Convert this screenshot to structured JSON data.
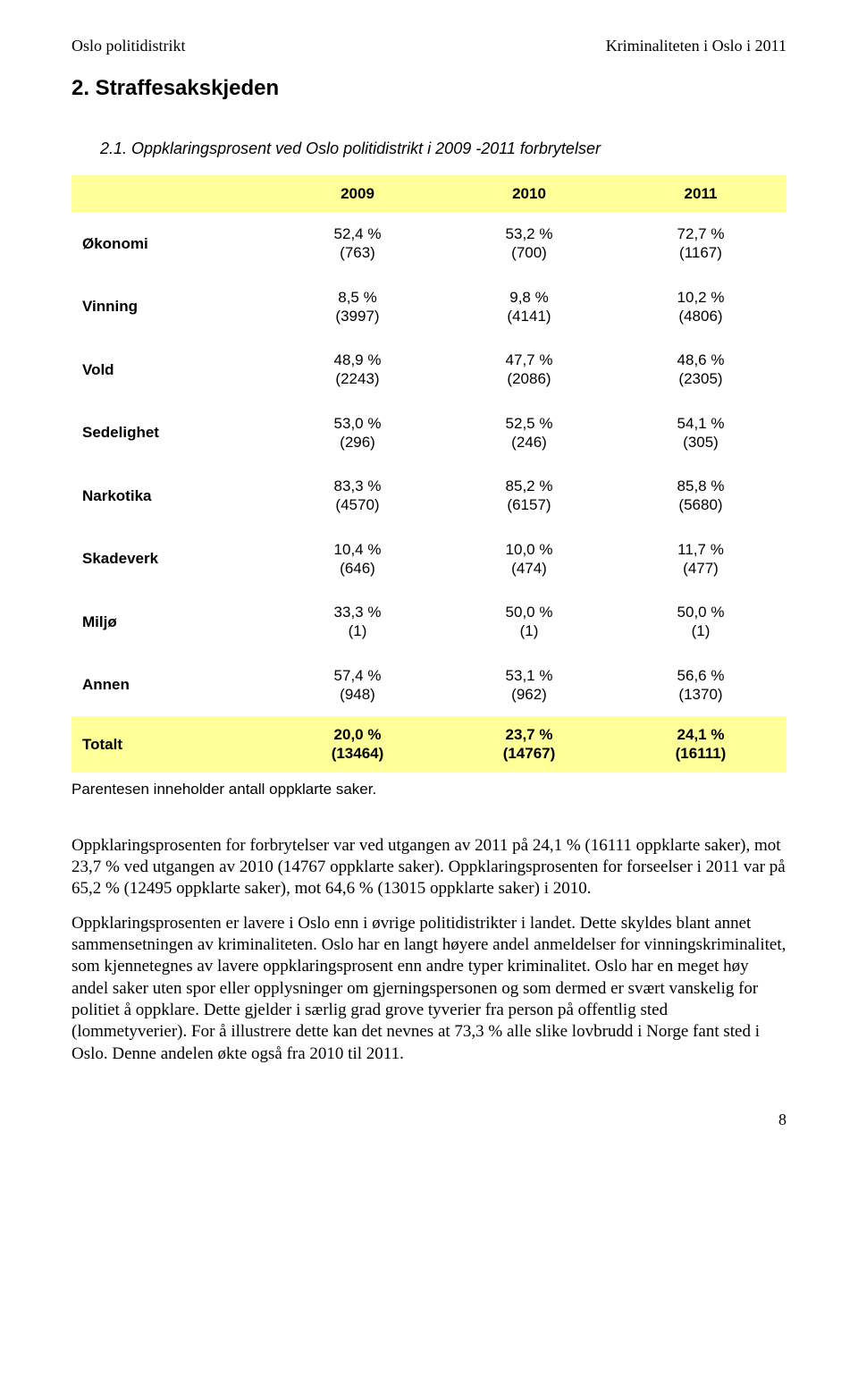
{
  "header": {
    "left": "Oslo politidistrikt",
    "right": "Kriminaliteten i Oslo i 2011"
  },
  "section_title": "2. Straffesakskjeden",
  "table_title": "2.1. Oppklaringsprosent ved Oslo politidistrikt i 2009 -2011 forbrytelser",
  "table": {
    "header_bg": "#ffff99",
    "total_bg": "#ffff99",
    "columns": [
      "",
      "2009",
      "2010",
      "2011"
    ],
    "rows": [
      {
        "label": "Økonomi",
        "y2009": {
          "pct": "52,4 %",
          "n": "(763)"
        },
        "y2010": {
          "pct": "53,2 %",
          "n": "(700)"
        },
        "y2011": {
          "pct": "72,7 %",
          "n": "(1167)"
        }
      },
      {
        "label": "Vinning",
        "y2009": {
          "pct": "8,5 %",
          "n": "(3997)"
        },
        "y2010": {
          "pct": "9,8 %",
          "n": "(4141)"
        },
        "y2011": {
          "pct": "10,2 %",
          "n": "(4806)"
        }
      },
      {
        "label": "Vold",
        "y2009": {
          "pct": "48,9 %",
          "n": "(2243)"
        },
        "y2010": {
          "pct": "47,7 %",
          "n": "(2086)"
        },
        "y2011": {
          "pct": "48,6 %",
          "n": "(2305)"
        }
      },
      {
        "label": "Sedelighet",
        "y2009": {
          "pct": "53,0 %",
          "n": "(296)"
        },
        "y2010": {
          "pct": "52,5 %",
          "n": "(246)"
        },
        "y2011": {
          "pct": "54,1 %",
          "n": "(305)"
        }
      },
      {
        "label": "Narkotika",
        "y2009": {
          "pct": "83,3 %",
          "n": "(4570)"
        },
        "y2010": {
          "pct": "85,2 %",
          "n": "(6157)"
        },
        "y2011": {
          "pct": "85,8 %",
          "n": "(5680)"
        }
      },
      {
        "label": "Skadeverk",
        "y2009": {
          "pct": "10,4 %",
          "n": "(646)"
        },
        "y2010": {
          "pct": "10,0 %",
          "n": "(474)"
        },
        "y2011": {
          "pct": "11,7 %",
          "n": "(477)"
        }
      },
      {
        "label": "Miljø",
        "y2009": {
          "pct": "33,3 %",
          "n": "(1)"
        },
        "y2010": {
          "pct": "50,0 %",
          "n": "(1)"
        },
        "y2011": {
          "pct": "50,0 %",
          "n": "(1)"
        }
      },
      {
        "label": "Annen",
        "y2009": {
          "pct": "57,4 %",
          "n": "(948)"
        },
        "y2010": {
          "pct": "53,1 %",
          "n": "(962)"
        },
        "y2011": {
          "pct": "56,6 %",
          "n": "(1370)"
        }
      }
    ],
    "total": {
      "label": "Totalt",
      "y2009": {
        "pct": "20,0 %",
        "n": "(13464)"
      },
      "y2010": {
        "pct": "23,7 %",
        "n": "(14767)"
      },
      "y2011": {
        "pct": "24,1 %",
        "n": "(16111)"
      }
    }
  },
  "footnote": "Parentesen inneholder antall oppklarte saker.",
  "paragraphs": [
    "Oppklaringsprosenten for forbrytelser var ved utgangen av 2011 på 24,1 % (16111 oppklarte saker), mot 23,7 % ved utgangen av 2010 (14767 oppklarte saker). Oppklaringsprosenten for forseelser i 2011 var på 65,2 % (12495 oppklarte saker), mot 64,6 % (13015 oppklarte saker) i 2010.",
    "Oppklaringsprosenten er lavere i Oslo enn i øvrige politidistrikter i landet. Dette skyldes blant annet sammensetningen av kriminaliteten. Oslo har en langt høyere andel anmeldelser for vinningskriminalitet, som kjennetegnes av lavere oppklaringsprosent enn andre typer kriminalitet. Oslo har en meget høy andel saker uten spor eller opplysninger om gjerningspersonen og som dermed er svært vanskelig for politiet å oppklare. Dette gjelder i særlig grad grove tyverier fra person på offentlig sted (lommetyverier). For å illustrere dette kan det nevnes at 73,3 % alle slike lovbrudd i Norge fant sted i Oslo. Denne andelen økte også fra 2010 til 2011."
  ],
  "page_number": "8"
}
